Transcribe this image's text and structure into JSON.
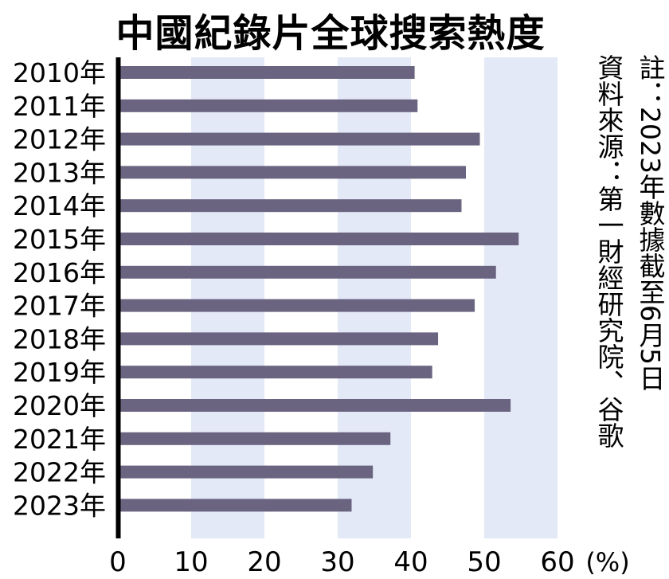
{
  "chart_data": {
    "type": "bar",
    "orientation": "horizontal",
    "title": "中國紀錄片全球搜索熱度",
    "categories": [
      "2010年",
      "2011年",
      "2012年",
      "2013年",
      "2014年",
      "2015年",
      "2016年",
      "2017年",
      "2018年",
      "2019年",
      "2020年",
      "2021年",
      "2022年",
      "2023年"
    ],
    "values": [
      40.5,
      40.9,
      49.4,
      47.5,
      46.9,
      54.7,
      51.6,
      48.7,
      43.7,
      42.9,
      53.6,
      37.2,
      34.8,
      31.9
    ],
    "xlim": [
      0,
      60
    ],
    "xticks": [
      "0",
      "10",
      "20",
      "30",
      "40",
      "50",
      "60"
    ],
    "unit": "(%)",
    "bar_color": "#6a6480",
    "band_color": "#e4e9f7",
    "note": "註：2023年數據截至6月5日",
    "source": "資料來源：第一財經研究院、谷歌"
  }
}
